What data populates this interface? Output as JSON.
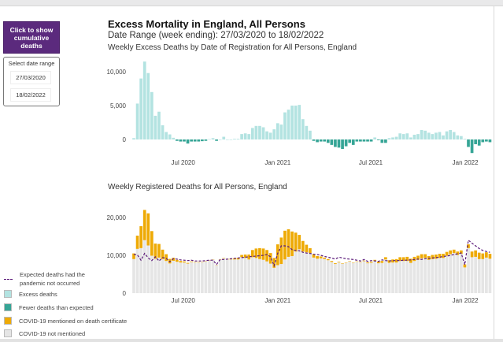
{
  "controls": {
    "cumulative_button": "Click to show cumulative deaths",
    "date_range_label": "Select date range",
    "start_date": "27/03/2020",
    "end_date": "18/02/2022"
  },
  "header": {
    "title": "Excess Mortality in England, All Persons",
    "date_range": "Date Range (week ending): 27/03/2020 to 18/02/2022"
  },
  "colors": {
    "excess": "#b3e3e1",
    "fewer": "#36a596",
    "covid": "#eeaa05",
    "not_mentioned": "#e5e5e5",
    "expected_line": "#5b1a7a",
    "button": "#5b2a7d"
  },
  "legend": [
    {
      "label": "Expected deaths had the pandemic not occurred",
      "type": "dashed-line",
      "color": "#5b1a7a"
    },
    {
      "label": "Excess deaths",
      "type": "swatch",
      "color": "#b3e3e1"
    },
    {
      "label": "Fewer deaths than expected",
      "type": "swatch",
      "color": "#36a596"
    },
    {
      "label": "COVID-19 mentioned on death certificate",
      "type": "swatch",
      "color": "#eeaa05"
    },
    {
      "label": "COVID-19 not mentioned",
      "type": "swatch",
      "color": "#e5e5e5"
    }
  ],
  "chart_data": [
    {
      "type": "bar",
      "title": "Weekly Excess Deaths by Date of Registration for All Persons, England",
      "x_frequency": "weekly",
      "x_start": "2020-03-27",
      "x_end": "2022-02-18",
      "x_ticks": [
        {
          "label": "Jul 2020",
          "date": "2020-07-01"
        },
        {
          "label": "Jan 2021",
          "date": "2021-01-01"
        },
        {
          "label": "Jul 2021",
          "date": "2021-07-01"
        },
        {
          "label": "Jan 2022",
          "date": "2022-01-01"
        }
      ],
      "y_ticks": [
        {
          "label": "0",
          "value": 0
        },
        {
          "label": "5,000",
          "value": 5000
        },
        {
          "label": "10,000",
          "value": 10000
        }
      ],
      "ylim": [
        -2500,
        12000
      ],
      "grid": false,
      "series": [
        {
          "name": "Excess deaths",
          "values": [
            200,
            5300,
            9000,
            11500,
            9800,
            7000,
            3500,
            4100,
            2100,
            1100,
            750,
            250,
            -200,
            -300,
            -300,
            -600,
            -300,
            -300,
            -300,
            -250,
            -200,
            50,
            200,
            -200,
            0,
            400,
            0,
            0,
            100,
            100,
            800,
            900,
            800,
            1700,
            2000,
            2000,
            1800,
            1200,
            1000,
            1500,
            2400,
            2200,
            4000,
            4400,
            5000,
            5000,
            5100,
            3000,
            2000,
            1300,
            -200,
            -400,
            -300,
            -300,
            -500,
            -800,
            -1100,
            -1200,
            -1400,
            -1000,
            -500,
            -800,
            -300,
            -300,
            -300,
            -300,
            -300,
            300,
            -100,
            -500,
            -500,
            200,
            300,
            400,
            900,
            800,
            900,
            300,
            700,
            800,
            1400,
            1300,
            1000,
            800,
            1000,
            1100,
            600,
            1200,
            1400,
            1100,
            600,
            500,
            100,
            -1100,
            -2000,
            -700,
            -900,
            -400,
            -300,
            -400
          ]
        }
      ]
    },
    {
      "type": "bar",
      "stacked": true,
      "title": "Weekly Registered Deaths for All Persons, England",
      "x_frequency": "weekly",
      "x_start": "2020-03-27",
      "x_end": "2022-02-18",
      "x_ticks": [
        {
          "label": "Jul 2020",
          "date": "2020-07-01"
        },
        {
          "label": "Jan 2021",
          "date": "2021-01-01"
        },
        {
          "label": "Jul 2021",
          "date": "2021-07-01"
        },
        {
          "label": "Jan 2022",
          "date": "2022-01-01"
        }
      ],
      "y_ticks": [
        {
          "label": "0",
          "value": 0
        },
        {
          "label": "10,000",
          "value": 10000
        },
        {
          "label": "20,000",
          "value": 20000
        }
      ],
      "ylim": [
        0,
        22000
      ],
      "grid": false,
      "series": [
        {
          "name": "COVID-19 not mentioned",
          "values": [
            9000,
            11700,
            11900,
            14000,
            12600,
            9900,
            9100,
            9400,
            9000,
            8500,
            7850,
            8550,
            8300,
            8100,
            8100,
            7800,
            8250,
            8100,
            8100,
            8170,
            8320,
            8680,
            8840,
            7340,
            8820,
            9200,
            8900,
            8900,
            8900,
            8900,
            9500,
            9300,
            8900,
            9500,
            9300,
            9000,
            8800,
            8400,
            7800,
            6700,
            7400,
            7700,
            8900,
            9600,
            9800,
            11000,
            11600,
            11000,
            10800,
            10600,
            9400,
            9100,
            9200,
            9050,
            8700,
            8250,
            7700,
            8150,
            7780,
            8000,
            8400,
            8000,
            8300,
            8100,
            8450,
            7900,
            8050,
            8500,
            7900,
            8000,
            8900,
            8000,
            8100,
            8100,
            8500,
            8500,
            8500,
            8000,
            8500,
            8800,
            9200,
            9300,
            8800,
            9000,
            9100,
            9300,
            9300,
            9900,
            10300,
            10600,
            10100,
            10400,
            6800,
            11900,
            9500,
            9600,
            9000,
            9000,
            9400,
            9100
          ]
        },
        {
          "name": "COVID-19 mentioned on death certificate",
          "values": [
            1500,
            3500,
            5800,
            8000,
            8500,
            6500,
            4000,
            3600,
            2500,
            1800,
            1200,
            800,
            500,
            400,
            300,
            200,
            150,
            100,
            100,
            80,
            80,
            70,
            60,
            60,
            80,
            100,
            150,
            200,
            300,
            400,
            600,
            900,
            1300,
            1900,
            2500,
            2900,
            3000,
            3000,
            2800,
            2600,
            5500,
            7000,
            7600,
            7300,
            6500,
            5000,
            3800,
            2800,
            2000,
            1300,
            900,
            700,
            500,
            350,
            300,
            250,
            200,
            150,
            120,
            100,
            100,
            100,
            100,
            100,
            150,
            200,
            250,
            300,
            400,
            500,
            600,
            700,
            800,
            900,
            1000,
            1000,
            1100,
            1100,
            1100,
            1100,
            1100,
            1000,
            1000,
            1100,
            1100,
            1100,
            1100,
            1000,
            1000,
            900,
            900,
            900,
            800,
            1000,
            1500,
            1700,
            1700,
            1500,
            1400,
            1300
          ]
        },
        {
          "name": "Expected deaths had the pandemic not occurred",
          "type": "line",
          "values": [
            10300,
            10100,
            8700,
            10500,
            9300,
            8600,
            9600,
            8500,
            9400,
            9200,
            8300,
            9100,
            9000,
            8800,
            8700,
            8600,
            8700,
            8500,
            8500,
            8500,
            8600,
            8700,
            8700,
            7600,
            8900,
            8900,
            9000,
            9100,
            9200,
            9300,
            9400,
            9500,
            9600,
            9700,
            9800,
            9900,
            10000,
            10200,
            9600,
            7200,
            10500,
            12500,
            12500,
            12300,
            11500,
            11300,
            11200,
            10800,
            10600,
            10500,
            10300,
            10200,
            10000,
            9700,
            9500,
            9300,
            9000,
            9500,
            9300,
            9100,
            9000,
            8900,
            8700,
            8500,
            8900,
            8400,
            8600,
            8500,
            8400,
            8800,
            8600,
            8500,
            8600,
            8600,
            8600,
            8700,
            8700,
            8800,
            8900,
            9000,
            8900,
            9100,
            9200,
            9300,
            9400,
            9500,
            9700,
            9800,
            10000,
            10200,
            10400,
            10600,
            7500,
            14000,
            13200,
            12500,
            11800,
            11300,
            11000,
            10800
          ]
        }
      ]
    }
  ]
}
